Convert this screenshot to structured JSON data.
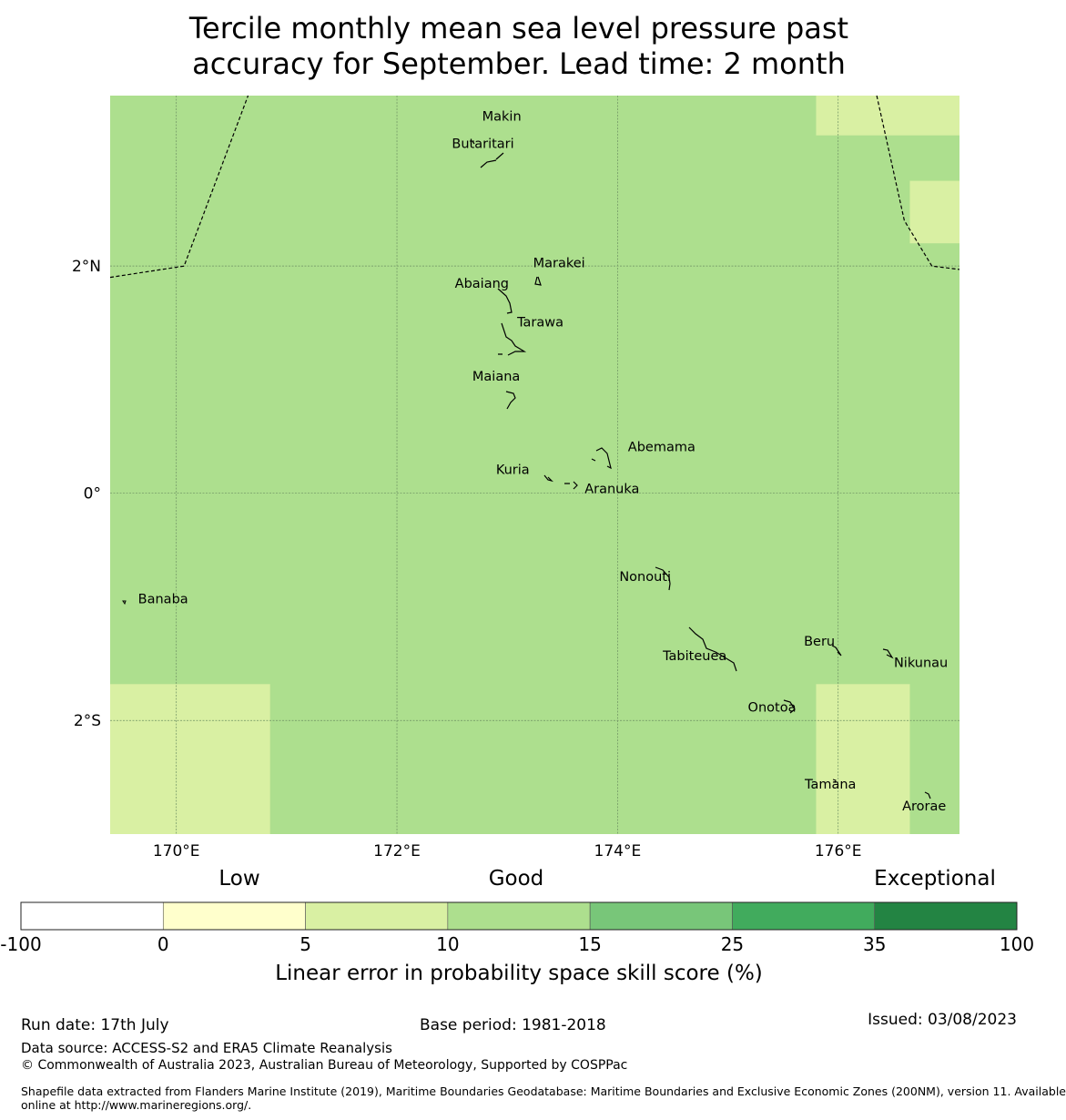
{
  "title_line1": "Tercile monthly mean sea level pressure past",
  "title_line2": "accuracy for September. Lead time: 2 month",
  "map": {
    "lon_range": [
      169.4,
      177.1
    ],
    "lat_range": [
      -3.0,
      3.5
    ],
    "lon_ticks": [
      {
        "value": 170,
        "label": "170°E"
      },
      {
        "value": 172,
        "label": "172°E"
      },
      {
        "value": 174,
        "label": "174°E"
      },
      {
        "value": 176,
        "label": "176°E"
      }
    ],
    "lat_ticks": [
      {
        "value": 2,
        "label": "2°N"
      },
      {
        "value": 0,
        "label": "0°"
      },
      {
        "value": -2,
        "label": "2°S"
      }
    ],
    "background_color": "#addf8e",
    "cells": [
      {
        "lon": [
          175.8,
          177.1
        ],
        "lat": [
          3.15,
          3.5
        ],
        "color": "#d9f0a3"
      },
      {
        "lon": [
          176.65,
          177.1
        ],
        "lat": [
          2.2,
          2.75
        ],
        "color": "#d9f0a3"
      },
      {
        "lon": [
          169.4,
          170.85
        ],
        "lat": [
          -3.0,
          -1.68
        ],
        "color": "#d9f0a3"
      },
      {
        "lon": [
          175.8,
          176.65
        ],
        "lat": [
          -3.0,
          -1.68
        ],
        "color": "#d9f0a3"
      }
    ],
    "eez_boundaries": [
      [
        [
          169.4,
          1.9
        ],
        [
          170.07,
          2.0
        ],
        [
          170.65,
          3.5
        ]
      ],
      [
        [
          176.35,
          3.5
        ],
        [
          176.6,
          2.4
        ],
        [
          176.85,
          2.0
        ],
        [
          177.1,
          1.97
        ]
      ]
    ],
    "places": [
      {
        "name": "Makin",
        "lon": 172.95,
        "lat": 3.32
      },
      {
        "name": "Butaritari",
        "lon": 172.78,
        "lat": 3.08
      },
      {
        "name": "Marakei",
        "lon": 173.47,
        "lat": 2.03
      },
      {
        "name": "Abaiang",
        "lon": 172.77,
        "lat": 1.85
      },
      {
        "name": "Tarawa",
        "lon": 173.3,
        "lat": 1.51
      },
      {
        "name": "Maiana",
        "lon": 172.9,
        "lat": 1.03
      },
      {
        "name": "Abemama",
        "lon": 174.4,
        "lat": 0.41
      },
      {
        "name": "Kuria",
        "lon": 173.05,
        "lat": 0.21
      },
      {
        "name": "Aranuka",
        "lon": 173.95,
        "lat": 0.04
      },
      {
        "name": "Nonouti",
        "lon": 174.25,
        "lat": -0.73
      },
      {
        "name": "Banaba",
        "lon": 169.88,
        "lat": -0.93
      },
      {
        "name": "Beru",
        "lon": 175.83,
        "lat": -1.3
      },
      {
        "name": "Tabiteuea",
        "lon": 174.7,
        "lat": -1.43
      },
      {
        "name": "Nikunau",
        "lon": 176.75,
        "lat": -1.49
      },
      {
        "name": "Onotoa",
        "lon": 175.4,
        "lat": -1.88
      },
      {
        "name": "Tamana",
        "lon": 175.93,
        "lat": -2.56
      },
      {
        "name": "Arorae",
        "lon": 176.78,
        "lat": -2.75
      }
    ]
  },
  "legend": {
    "category_labels": {
      "low": "Low",
      "good": "Good",
      "exceptional": "Exceptional"
    },
    "bins": [
      {
        "from": -100,
        "to": 0,
        "color": "#ffffff"
      },
      {
        "from": 0,
        "to": 5,
        "color": "#ffffcc"
      },
      {
        "from": 5,
        "to": 10,
        "color": "#d9f0a3"
      },
      {
        "from": 10,
        "to": 15,
        "color": "#addf8e"
      },
      {
        "from": 15,
        "to": 25,
        "color": "#78c679"
      },
      {
        "from": 25,
        "to": 35,
        "color": "#41ab5d"
      },
      {
        "from": 35,
        "to": 100,
        "color": "#238443"
      }
    ],
    "tick_labels": [
      "-100",
      "0",
      "5",
      "10",
      "15",
      "25",
      "35",
      "100"
    ],
    "label": "Linear error in probability space skill score (%)"
  },
  "footer": {
    "run_date": "Run date: 17th July",
    "base_period": "Base period: 1981-2018",
    "issued": "Issued: 03/08/2023",
    "data_source": "Data source: ACCESS-S2 and ERA5 Climate Reanalysis",
    "copyright": "© Commonwealth of Australia 2023, Australian Bureau of Meteorology, Supported by COSPPac",
    "shapefile_line1": "Shapefile data extracted from Flanders Marine Institute (2019), Maritime Boundaries Geodatabase: Maritime Boundaries and Exclusive Economic Zones (200NM), version 11. Available",
    "shapefile_line2": "online at http://www.marineregions.org/."
  }
}
